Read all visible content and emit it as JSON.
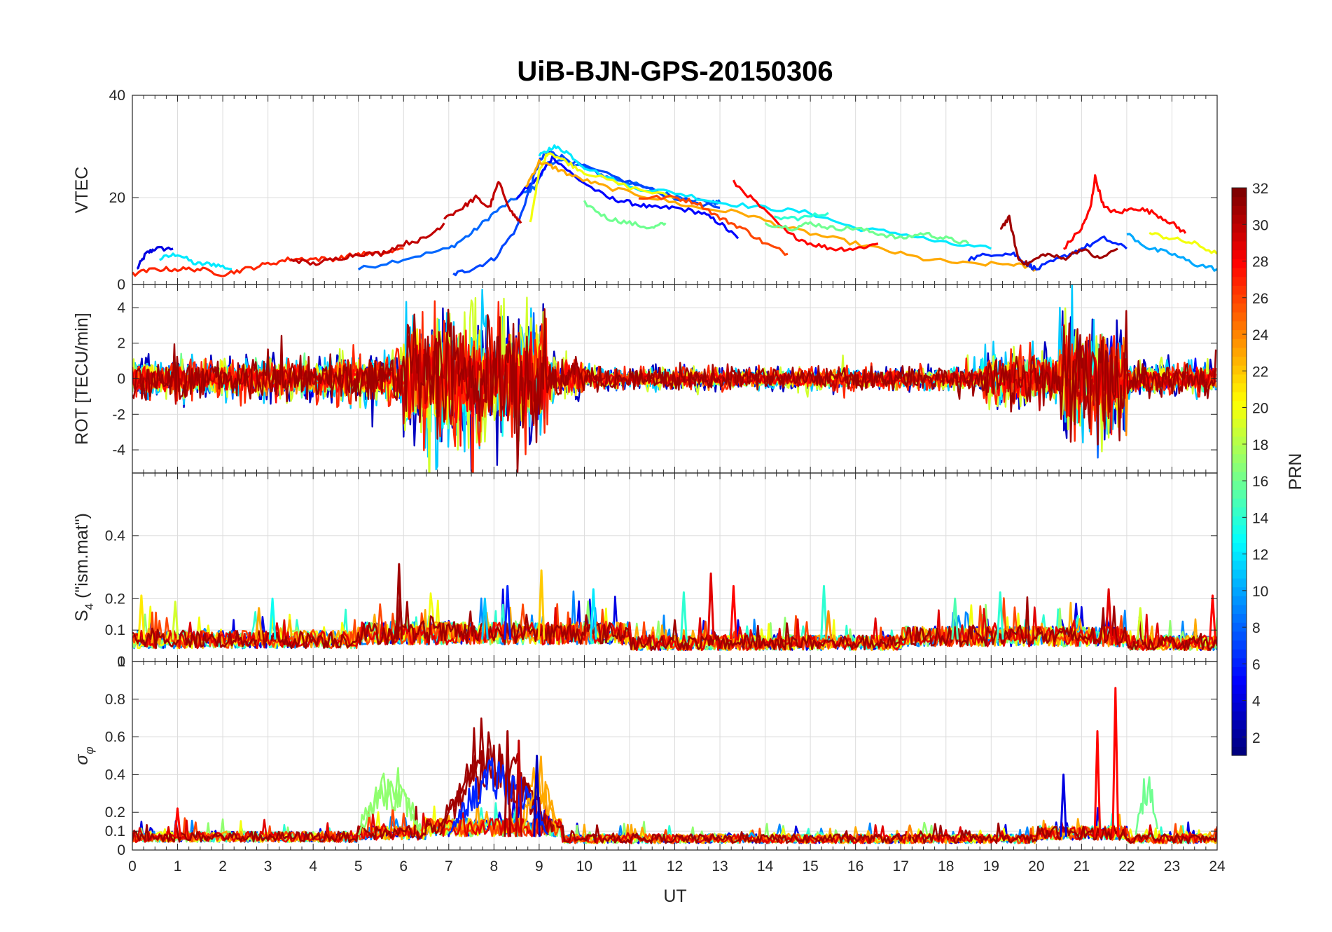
{
  "chart_data": {
    "type": "line",
    "title": "UiB-BJN-GPS-20150306",
    "xlabel": "UT",
    "xlim": [
      0,
      24
    ],
    "x_ticks": [
      "0",
      "1",
      "2",
      "3",
      "4",
      "5",
      "6",
      "7",
      "8",
      "9",
      "10",
      "11",
      "12",
      "13",
      "14",
      "15",
      "16",
      "17",
      "18",
      "19",
      "20",
      "21",
      "22",
      "23",
      "24"
    ],
    "grid": true,
    "panels": [
      {
        "ylabel": "VTEC",
        "ylim": [
          3,
          40
        ],
        "y_ticks": [
          "20",
          "40"
        ],
        "y_tick_values": [
          20,
          40
        ],
        "series": [
          {
            "prn": 4,
            "x": [
              0.1,
              0.3,
              0.5,
              0.9
            ],
            "y": [
              6,
              9,
              10,
              10
            ]
          },
          {
            "prn": 12,
            "x": [
              0.6,
              1.0,
              1.4,
              1.8,
              2.2
            ],
            "y": [
              8,
              9,
              7,
              7,
              6
            ]
          },
          {
            "prn": 8,
            "x": [
              5.0,
              6.0,
              7.0,
              7.5,
              8.0,
              8.5,
              8.9,
              9.2,
              9.6,
              10.0,
              10.5,
              11.0,
              11.6,
              12.2,
              12.8,
              13.0
            ],
            "y": [
              6,
              8,
              10,
              13,
              17,
              20,
              22,
              27,
              27,
              26,
              24,
              23,
              21,
              20,
              19,
              19
            ]
          },
          {
            "prn": 5,
            "x": [
              8.5,
              9.0,
              9.3,
              9.8,
              10.5,
              11.0,
              11.5,
              12.0,
              12.6,
              13.0,
              13.4
            ],
            "y": [
              20,
              24,
              28,
              24,
              20,
              19,
              18,
              18,
              17,
              15,
              12
            ]
          },
          {
            "prn": 7,
            "x": [
              7.1,
              7.5,
              8.0,
              8.5,
              8.8,
              9.0,
              9.2,
              9.5,
              10.0,
              11.0,
              12.0,
              13.0
            ],
            "y": [
              5,
              6,
              8,
              14,
              22,
              27,
              29,
              28,
              26,
              23,
              20,
              18
            ]
          },
          {
            "prn": 12,
            "x": [
              9.0,
              9.3,
              9.6,
              10.0,
              11.0,
              12.0,
              13.0,
              14.0,
              15.0,
              16.0,
              17.0,
              18.0,
              19.0
            ],
            "y": [
              28,
              30,
              29,
              26,
              22,
              21,
              19,
              18,
              17,
              14,
              13,
              11,
              10
            ]
          },
          {
            "prn": 16,
            "x": [
              10.0,
              10.5,
              11.0,
              11.5,
              11.8
            ],
            "y": [
              19,
              16,
              15,
              14,
              15
            ]
          },
          {
            "prn": 20,
            "x": [
              8.8,
              9.0,
              9.2,
              9.6,
              10.0,
              11.0,
              12.0
            ],
            "y": [
              15,
              25,
              29,
              27,
              25,
              22,
              20
            ]
          },
          {
            "prn": 23,
            "x": [
              8.7,
              9.0,
              9.3,
              9.8,
              10.5,
              11.5,
              12.5,
              13.5,
              14.5,
              15.5,
              16.5,
              17.5,
              18.5,
              19.5,
              20.0
            ],
            "y": [
              22,
              27,
              26,
              24,
              22,
              20,
              18,
              17,
              14,
              12,
              10,
              8,
              7,
              7,
              6
            ]
          },
          {
            "prn": 30,
            "x": [
              6.9,
              7.3,
              7.6,
              7.9,
              8.1,
              8.4,
              8.6
            ],
            "y": [
              16,
              18,
              20,
              18,
              23,
              17,
              15
            ]
          },
          {
            "prn": 28,
            "x": [
              13.3,
              13.8,
              14.5,
              15.0,
              15.5,
              16.0,
              16.5
            ],
            "y": [
              23,
              19,
              13,
              11,
              10,
              10,
              11
            ]
          },
          {
            "prn": 26,
            "x": [
              11.2,
              12.0,
              12.5,
              13.0,
              13.5,
              14.0,
              14.5
            ],
            "y": [
              20,
              20,
              19,
              16,
              14,
              11,
              9
            ]
          },
          {
            "prn": 16,
            "x": [
              14.0,
              14.6,
              15.0,
              15.5,
              16.0,
              16.5,
              17.0,
              17.5,
              18.0,
              18.5
            ],
            "y": [
              15,
              14,
              15,
              14,
              14,
              13,
              12,
              13,
              12,
              11
            ]
          },
          {
            "prn": 14,
            "x": [
              14.2,
              14.8,
              15.4
            ],
            "y": [
              16,
              16,
              17
            ]
          },
          {
            "prn": 6,
            "x": [
              18.5,
              19.0,
              19.5,
              19.8,
              20.0,
              20.5,
              21.0,
              21.5,
              22.0
            ],
            "y": [
              8,
              9,
              9,
              7,
              6,
              8,
              10,
              12,
              10
            ]
          },
          {
            "prn": 31,
            "x": [
              19.2,
              19.4,
              19.6,
              19.8,
              20.2,
              20.6,
              21.0,
              21.4,
              21.8
            ],
            "y": [
              14,
              16,
              8,
              7,
              9,
              8,
              10,
              8,
              10
            ]
          },
          {
            "prn": 28,
            "x": [
              20.6,
              21.0,
              21.2,
              21.3,
              21.5,
              21.8,
              22.2,
              22.6,
              23.0,
              23.3
            ],
            "y": [
              10,
              14,
              18,
              24,
              18,
              17,
              18,
              17,
              15,
              13
            ]
          },
          {
            "prn": 10,
            "x": [
              22.0,
              22.5,
              23.0,
              23.5,
              24.0
            ],
            "y": [
              13,
              10,
              9,
              7,
              6
            ]
          },
          {
            "prn": 20,
            "x": [
              22.5,
              23.0,
              23.5,
              24.0
            ],
            "y": [
              13,
              12,
              11,
              9
            ]
          },
          {
            "prn": 27,
            "x": [
              0.0,
              0.5,
              1.0,
              1.5,
              2.0,
              2.5,
              3.0,
              3.5,
              4.0,
              4.5,
              5.0,
              5.5,
              6.0
            ],
            "y": [
              5,
              6,
              6,
              6,
              5,
              6,
              7,
              8,
              8,
              8,
              9,
              9,
              10
            ]
          },
          {
            "prn": 30,
            "x": [
              3.5,
              4.0,
              4.5,
              5.0,
              5.5,
              6.0,
              6.5,
              6.9
            ],
            "y": [
              8,
              7,
              8,
              9,
              9,
              11,
              12,
              15
            ]
          }
        ]
      },
      {
        "ylabel": "ROT [TECU/min]",
        "ylim": [
          -5.3,
          5.3
        ],
        "y_ticks": [
          "-4",
          "-2",
          "0",
          "2",
          "4"
        ],
        "y_tick_values": [
          -4,
          -2,
          0,
          2,
          4
        ],
        "top_label": "0",
        "bursts": [
          {
            "x_from": 0.0,
            "x_to": 4.5,
            "amplitude": 1.5
          },
          {
            "x_from": 4.5,
            "x_to": 6.0,
            "amplitude": 2.0
          },
          {
            "x_from": 6.0,
            "x_to": 9.2,
            "amplitude": 5.0
          },
          {
            "x_from": 9.2,
            "x_to": 10.0,
            "amplitude": 1.5
          },
          {
            "x_from": 10.0,
            "x_to": 18.8,
            "amplitude": 0.8
          },
          {
            "x_from": 18.8,
            "x_to": 20.5,
            "amplitude": 2.2
          },
          {
            "x_from": 20.5,
            "x_to": 22.0,
            "amplitude": 4.5
          },
          {
            "x_from": 22.0,
            "x_to": 24.0,
            "amplitude": 1.2
          }
        ]
      },
      {
        "ylabel": "S4 (\"ism.mat\")",
        "ylabel_main": "S",
        "ylabel_sub": "4",
        "ylabel_rest": " (\"ism.mat\")",
        "ylim": [
          0,
          0.6
        ],
        "y_ticks": [
          "0.1",
          "0.2",
          "0.4"
        ],
        "y_tick_values": [
          0.1,
          0.2,
          0.4
        ],
        "bottom_label": "0",
        "background": [
          {
            "x_from": 0.0,
            "x_to": 5.0,
            "level": 0.07
          },
          {
            "x_from": 5.0,
            "x_to": 11.0,
            "level": 0.09
          },
          {
            "x_from": 11.0,
            "x_to": 17.0,
            "level": 0.06
          },
          {
            "x_from": 17.0,
            "x_to": 22.0,
            "level": 0.08
          },
          {
            "x_from": 22.0,
            "x_to": 24.0,
            "level": 0.06
          }
        ],
        "peaks": [
          {
            "x": 0.2,
            "y": 0.21,
            "prn": 21
          },
          {
            "x": 0.95,
            "y": 0.19,
            "prn": 19
          },
          {
            "x": 2.8,
            "y": 0.17,
            "prn": 23
          },
          {
            "x": 3.1,
            "y": 0.2,
            "prn": 13
          },
          {
            "x": 5.9,
            "y": 0.31,
            "prn": 31
          },
          {
            "x": 7.8,
            "y": 0.2,
            "prn": 11
          },
          {
            "x": 8.3,
            "y": 0.24,
            "prn": 6
          },
          {
            "x": 9.05,
            "y": 0.29,
            "prn": 22
          },
          {
            "x": 10.2,
            "y": 0.23,
            "prn": 12
          },
          {
            "x": 12.2,
            "y": 0.22,
            "prn": 14
          },
          {
            "x": 12.8,
            "y": 0.28,
            "prn": 29
          },
          {
            "x": 13.3,
            "y": 0.24,
            "prn": 28
          },
          {
            "x": 15.3,
            "y": 0.24,
            "prn": 14
          },
          {
            "x": 15.4,
            "y": 0.16,
            "prn": 24
          },
          {
            "x": 18.2,
            "y": 0.2,
            "prn": 15
          },
          {
            "x": 19.2,
            "y": 0.22,
            "prn": 14
          },
          {
            "x": 21.6,
            "y": 0.23,
            "prn": 29
          },
          {
            "x": 22.3,
            "y": 0.17,
            "prn": 19
          },
          {
            "x": 23.9,
            "y": 0.21,
            "prn": 28
          }
        ]
      },
      {
        "ylabel": "σφ",
        "ylabel_main": "σ",
        "ylabel_sub": "φ",
        "ylim": [
          0,
          1.0
        ],
        "y_ticks": [
          "0",
          "0.1",
          "0.2",
          "0.4",
          "0.6",
          "0.8"
        ],
        "y_tick_values": [
          0,
          0.1,
          0.2,
          0.4,
          0.6,
          0.8
        ],
        "top_label": "1",
        "background": [
          {
            "x_from": 0.0,
            "x_to": 5.0,
            "level": 0.07
          },
          {
            "x_from": 5.0,
            "x_to": 6.5,
            "level": 0.09
          },
          {
            "x_from": 6.5,
            "x_to": 9.5,
            "level": 0.12
          },
          {
            "x_from": 9.5,
            "x_to": 20.0,
            "level": 0.06
          },
          {
            "x_from": 20.0,
            "x_to": 22.0,
            "level": 0.09
          },
          {
            "x_from": 22.0,
            "x_to": 24.0,
            "level": 0.06
          }
        ],
        "humps": [
          {
            "x_from": 5.0,
            "x_to": 6.4,
            "peak": 0.3,
            "prn": 17
          },
          {
            "x_from": 6.8,
            "x_to": 9.2,
            "peak": 0.45,
            "prn": 31
          },
          {
            "x_from": 7.0,
            "x_to": 9.2,
            "peak": 0.38,
            "prn": 6
          },
          {
            "x_from": 8.6,
            "x_to": 9.4,
            "peak": 0.32,
            "prn": 23
          },
          {
            "x_from": 22.2,
            "x_to": 22.7,
            "peak": 0.3,
            "prn": 16
          }
        ],
        "peaks": [
          {
            "x": 8.3,
            "y": 0.63,
            "prn": 31
          },
          {
            "x": 8.55,
            "y": 0.58,
            "prn": 30
          },
          {
            "x": 8.95,
            "y": 0.5,
            "prn": 3
          },
          {
            "x": 20.6,
            "y": 0.4,
            "prn": 4
          },
          {
            "x": 21.35,
            "y": 0.63,
            "prn": 28
          },
          {
            "x": 21.75,
            "y": 0.86,
            "prn": 28
          },
          {
            "x": 1.0,
            "y": 0.22,
            "prn": 28
          },
          {
            "x": 13.7,
            "y": 0.09,
            "prn": 10
          },
          {
            "x": 17.2,
            "y": 0.13,
            "prn": 24
          }
        ]
      }
    ],
    "colorbar": {
      "label": "PRN",
      "range": [
        1,
        32
      ],
      "ticks": [
        "2",
        "4",
        "6",
        "8",
        "10",
        "12",
        "14",
        "16",
        "18",
        "20",
        "22",
        "24",
        "26",
        "28",
        "30",
        "32"
      ],
      "tick_values": [
        2,
        4,
        6,
        8,
        10,
        12,
        14,
        16,
        18,
        20,
        22,
        24,
        26,
        28,
        30,
        32
      ],
      "colormap": "jet"
    }
  }
}
